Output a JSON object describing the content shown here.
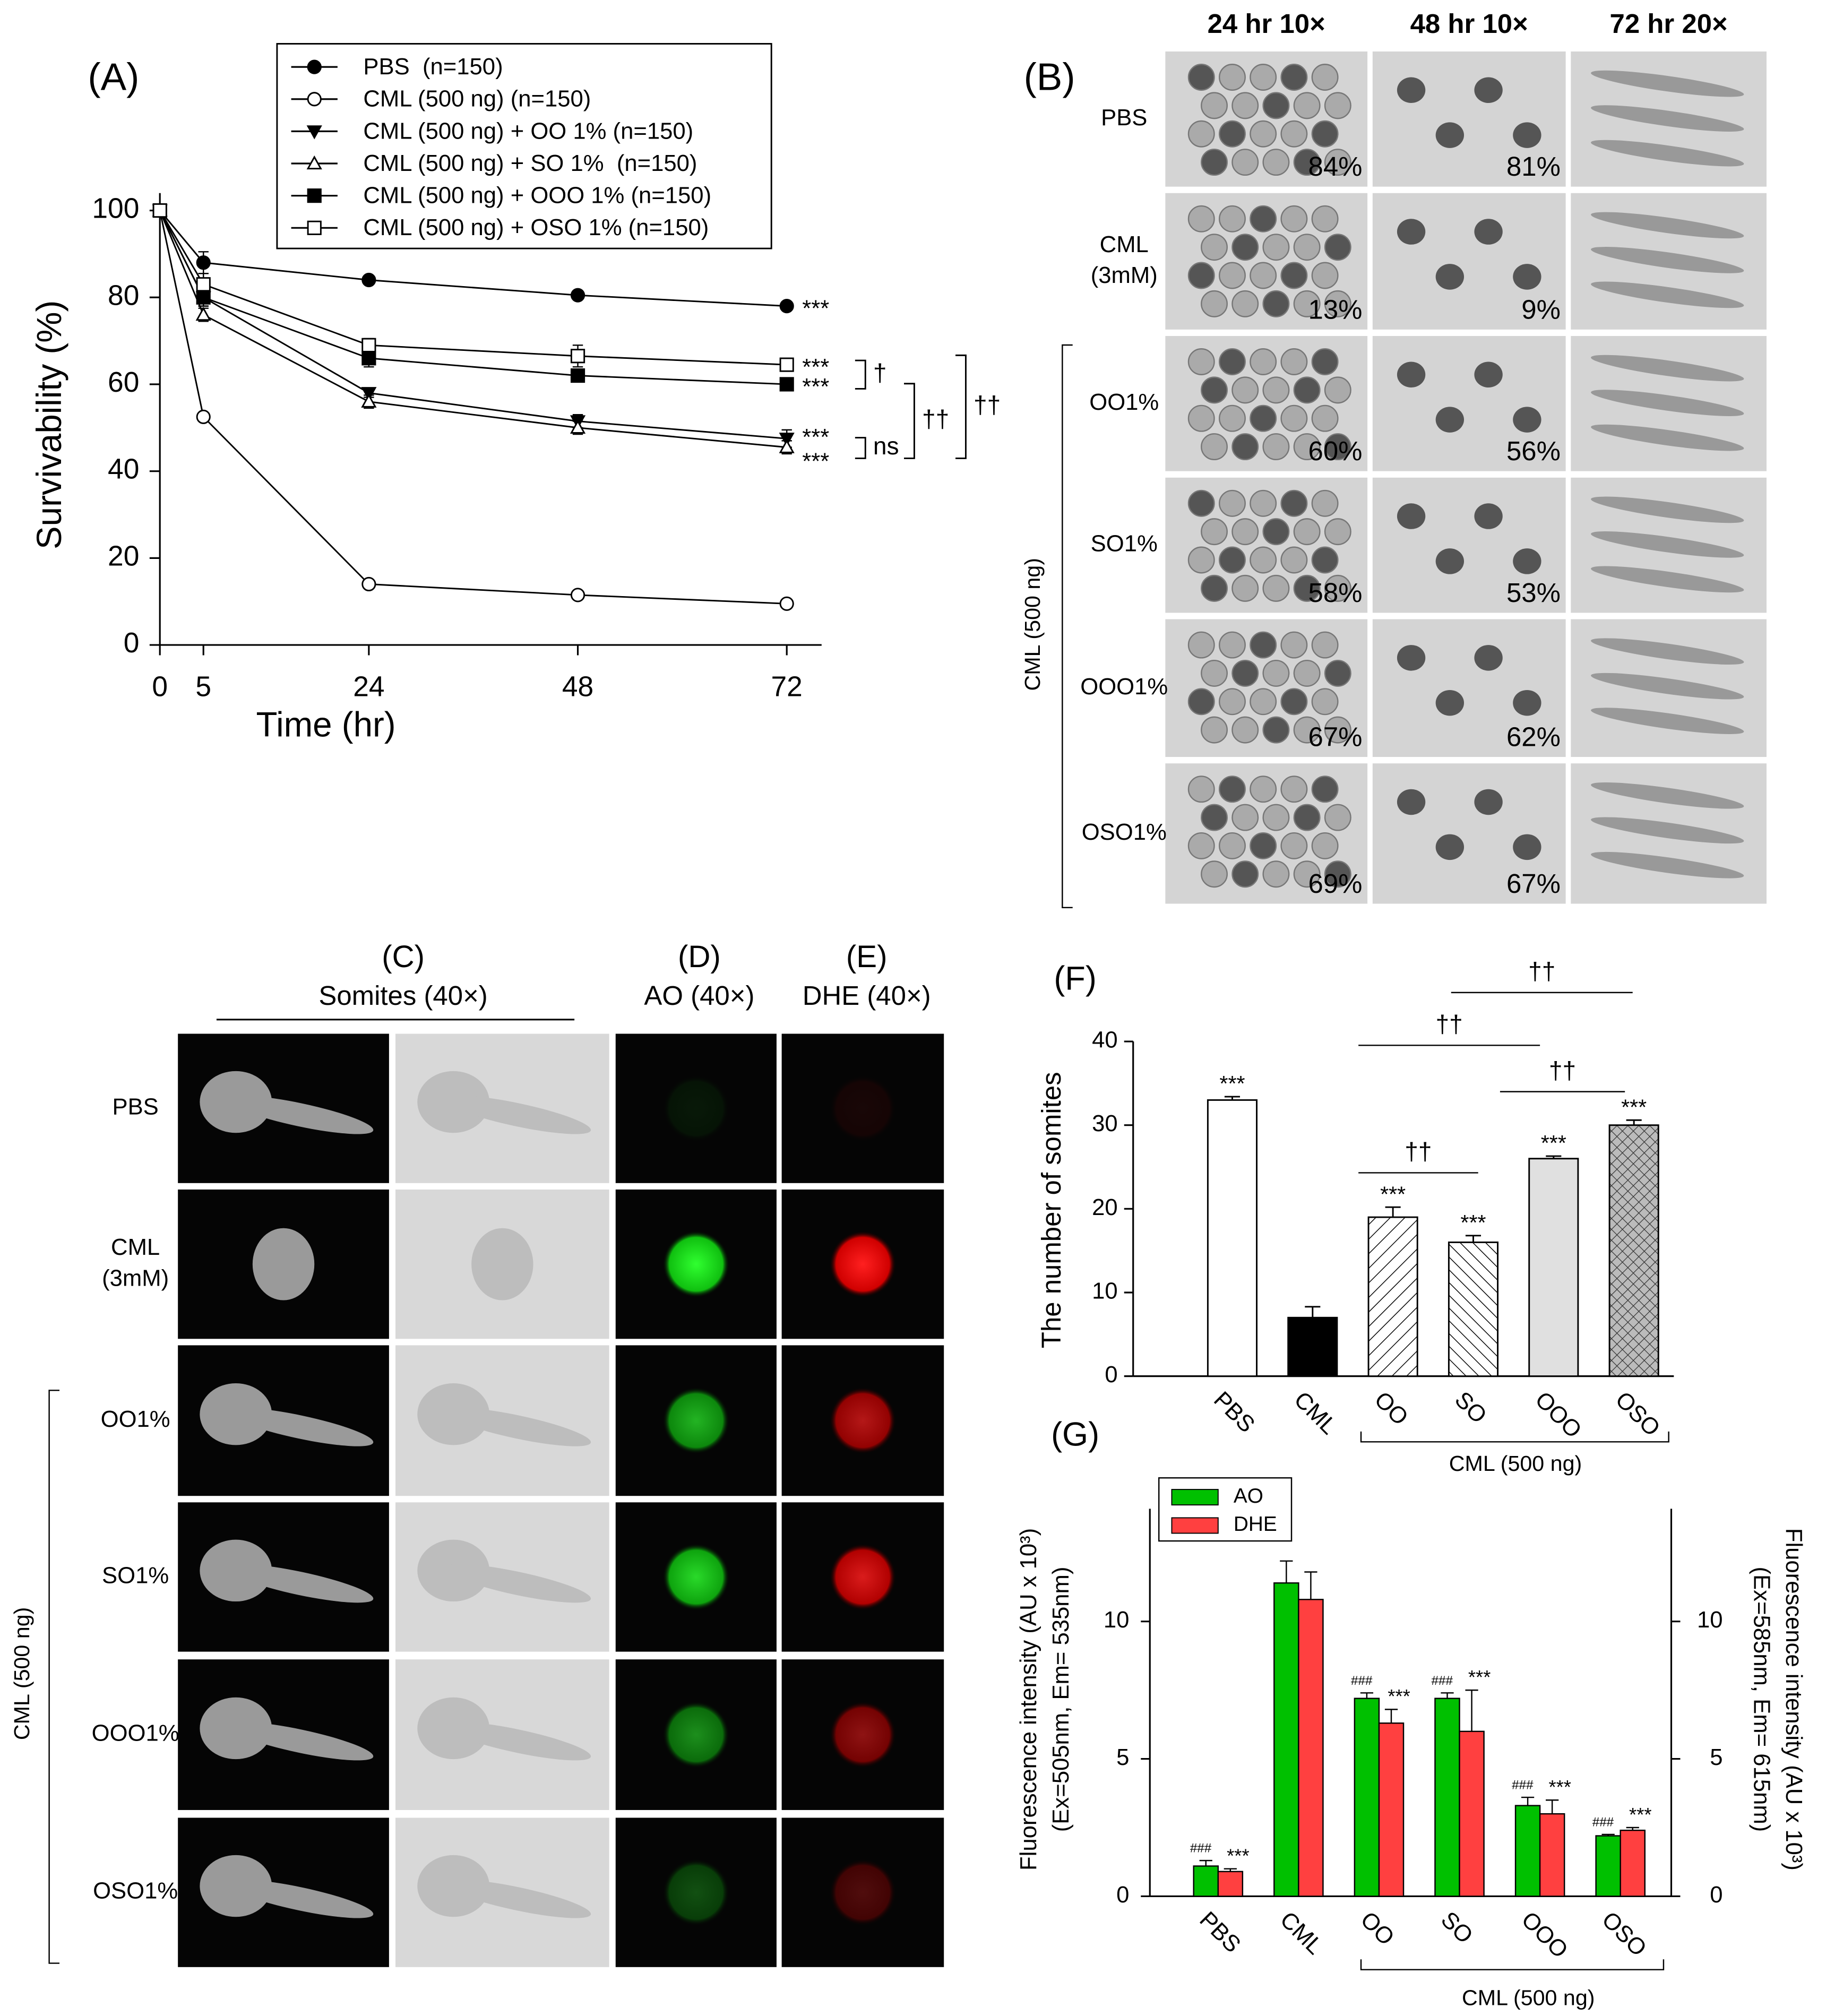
{
  "chart_data": [
    {
      "type": "line",
      "panel_label": "(A)",
      "x_label": "Time (hr)",
      "y_label": "Survivability (%)",
      "x": [
        0,
        5,
        24,
        48,
        72
      ],
      "xlim": [
        0,
        76
      ],
      "xticks": [
        0,
        5,
        24,
        48,
        72
      ],
      "ylim": [
        0,
        104
      ],
      "yticks": [
        0,
        20,
        40,
        60,
        80,
        100
      ],
      "series": [
        {
          "name": "PBS  (n=150)",
          "color": "#000000",
          "marker": "circle",
          "filled": true,
          "values": [
            100,
            88,
            84,
            80.5,
            78
          ],
          "errors": [
            0,
            2.5,
            0.5,
            0.8,
            0.5
          ],
          "end_label": "***"
        },
        {
          "name": "CML (500 ng) (n=150)",
          "color": "#000000",
          "marker": "circle",
          "filled": false,
          "values": [
            100,
            52.5,
            14,
            11.5,
            9.5
          ],
          "errors": [
            0,
            1,
            1,
            0.5,
            0.5
          ]
        },
        {
          "name": "CML (500 ng) + OO 1% (n=150)",
          "color": "#000000",
          "marker": "triangle-down",
          "filled": true,
          "values": [
            100,
            80,
            58,
            51.5,
            47.5
          ],
          "errors": [
            0,
            2,
            1,
            1.5,
            2
          ],
          "end_label": "***"
        },
        {
          "name": "CML (500 ng) + SO 1%  (n=150)",
          "color": "#000000",
          "marker": "triangle-up",
          "filled": false,
          "values": [
            100,
            76,
            56,
            50,
            45.5
          ],
          "errors": [
            0,
            1.5,
            1.5,
            1.5,
            1.5
          ],
          "end_label": "***"
        },
        {
          "name": "CML (500 ng) + OOO 1% (n=150)",
          "color": "#000000",
          "marker": "square",
          "filled": true,
          "values": [
            100,
            80,
            66,
            62,
            60
          ],
          "errors": [
            0,
            2,
            2,
            1,
            1.5
          ],
          "end_label": "***"
        },
        {
          "name": "CML (500 ng) + OSO 1% (n=150)",
          "color": "#000000",
          "marker": "square",
          "filled": false,
          "values": [
            100,
            83,
            69,
            66.5,
            64.5
          ],
          "errors": [
            0,
            2.5,
            1.5,
            2.5,
            1
          ],
          "end_label": "***"
        }
      ],
      "brackets": [
        "†",
        "ns",
        "††",
        "††"
      ]
    },
    {
      "type": "bar",
      "panel_label": "(F)",
      "y_label": "The number of somites",
      "categories": [
        "PBS",
        "CML",
        "OO",
        "SO",
        "OOO",
        "OSO"
      ],
      "values": [
        33,
        7,
        19,
        16,
        26,
        30
      ],
      "errors": [
        0.4,
        1.3,
        1.2,
        0.8,
        0.3,
        0.6
      ],
      "significance": [
        "***",
        null,
        "***",
        "***",
        "***",
        "***"
      ],
      "fills": [
        "white",
        "black",
        "hatch-fwd",
        "hatch-back",
        "lightgray",
        "crosshatch"
      ],
      "ylim": [
        0,
        40
      ],
      "yticks": [
        0,
        10,
        20,
        30,
        40
      ],
      "group_label": "CML (500 ng)",
      "comparisons": [
        "††",
        "††",
        "††",
        "††"
      ]
    },
    {
      "type": "grouped_bar",
      "panel_label": "(G)",
      "y_label": [
        "Fluorescence intensity (AU x 10³)",
        "(Ex=505nm, Em= 535nm)"
      ],
      "y2_label": [
        "Fluorescence intensity (AU x 10³)",
        "(Ex=585nm, Em= 615nm)"
      ],
      "categories": [
        "PBS",
        "CML",
        "OO",
        "SO",
        "OOO",
        "OSO"
      ],
      "series": [
        {
          "name": "AO",
          "color": "#00c000",
          "values": [
            1.1,
            11.4,
            7.2,
            7.2,
            3.3,
            2.2
          ],
          "errors": [
            0.2,
            0.8,
            0.2,
            0.2,
            0.3,
            0.05
          ],
          "significance": [
            "###",
            null,
            "###",
            "###",
            "###",
            "###"
          ]
        },
        {
          "name": "DHE",
          "color": "#ff4040",
          "axis": "y2",
          "values": [
            0.9,
            10.8,
            6.3,
            6.0,
            3.0,
            2.4
          ],
          "errors": [
            0.1,
            1.0,
            0.5,
            1.5,
            0.5,
            0.1
          ],
          "significance": [
            "***",
            null,
            "***",
            "***",
            "***",
            "***"
          ]
        }
      ],
      "ylim": [
        0,
        14.1
      ],
      "yticks": [
        0,
        5,
        10
      ],
      "y2lim": [
        0,
        14.1
      ],
      "y2ticks": [
        0,
        5,
        10
      ],
      "group_label": "CML (500 ng)"
    }
  ],
  "panel_b": {
    "label": "(B)",
    "columns": [
      "24 hr 10×",
      "48 hr 10×",
      "72 hr 20×"
    ],
    "rows": [
      {
        "label": [
          "PBS"
        ],
        "percents": [
          "84%",
          "81%"
        ]
      },
      {
        "label": [
          "CML",
          "(3mM)"
        ],
        "percents": [
          "13%",
          "9%"
        ]
      },
      {
        "label": [
          "OO1%"
        ],
        "percents": [
          "60%",
          "56%"
        ]
      },
      {
        "label": [
          "SO1%"
        ],
        "percents": [
          "58%",
          "53%"
        ]
      },
      {
        "label": [
          "OOO1%"
        ],
        "percents": [
          "67%",
          "62%"
        ]
      },
      {
        "label": [
          "OSO1%"
        ],
        "percents": [
          "69%",
          "67%"
        ]
      }
    ],
    "group_label": "CML (500 ng)"
  },
  "panel_cde": {
    "labels": [
      "(C)",
      "(D)",
      "(E)"
    ],
    "headers": [
      "Somites (40×)",
      "AO (40×)",
      "DHE (40×)"
    ],
    "rows": [
      [
        "PBS"
      ],
      [
        "CML",
        "(3mM)"
      ],
      [
        "OO1%"
      ],
      [
        "SO1%"
      ],
      [
        "OOO1%"
      ],
      [
        "OSO1%"
      ]
    ],
    "group_label": "CML (500 ng)"
  }
}
